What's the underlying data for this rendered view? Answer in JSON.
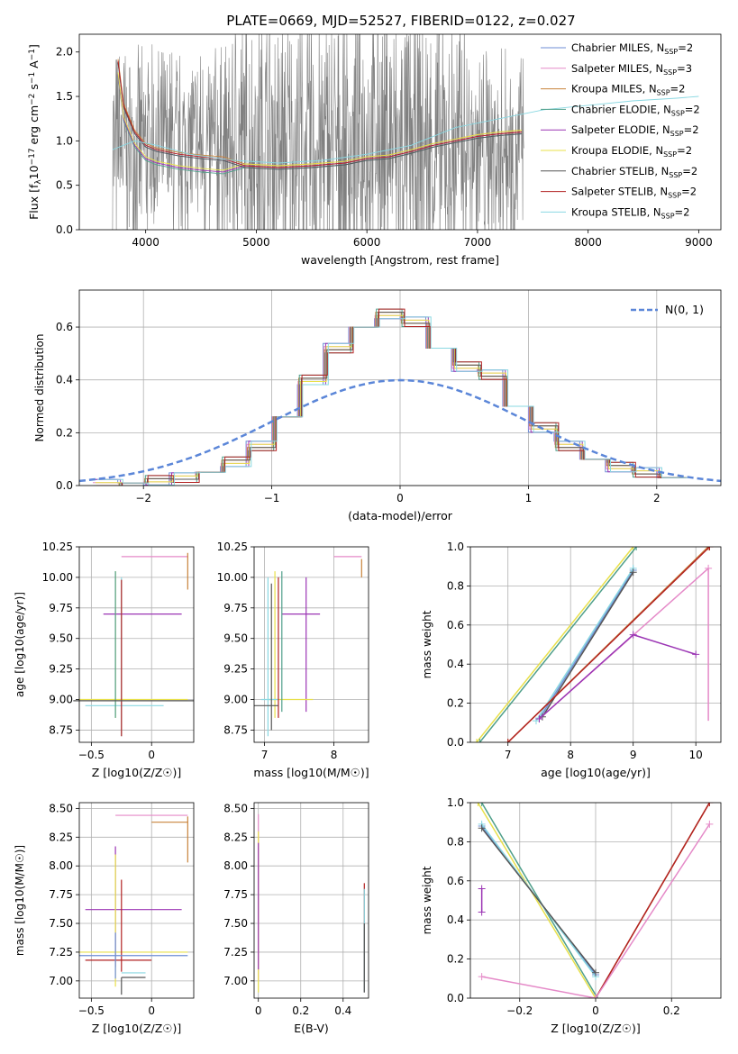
{
  "colors": {
    "Chabrier MILES": "#6e8ed6",
    "Salpeter MILES": "#e58ac8",
    "Kroupa MILES": "#c8823a",
    "Chabrier ELODIE": "#4f9f8a",
    "Salpeter ELODIE": "#9b35b4",
    "Kroupa ELODIE": "#e8e04a",
    "Chabrier STELIB": "#555555",
    "Salpeter STELIB": "#b22222",
    "Kroupa STELIB": "#8ad8e2",
    "data": "#808080",
    "gauss": "#5b86d8"
  },
  "chart_data": [
    {
      "id": "spectrum",
      "type": "line",
      "title": "PLATE=0669, MJD=52527, FIBERID=0122, z=0.027",
      "xlabel": "wavelength [Angstrom, rest frame]",
      "ylabel": "Flux [f_λ 10^-17 erg cm^-2 s^-1 A^-1]",
      "xlim": [
        3400,
        9200
      ],
      "ylim": [
        0,
        2.2
      ],
      "xticks": [
        4000,
        5000,
        6000,
        7000,
        8000,
        9000
      ],
      "yticks": [
        0.0,
        0.5,
        1.0,
        1.5,
        2.0
      ],
      "legend_position": "top-right",
      "legend": [
        {
          "label": "Chabrier MILES, N",
          "sub": "SSP",
          "tail": "=2"
        },
        {
          "label": "Salpeter MILES, N",
          "sub": "SSP",
          "tail": "=3"
        },
        {
          "label": "Kroupa MILES, N",
          "sub": "SSP",
          "tail": "=2"
        },
        {
          "label": "Chabrier ELODIE, N",
          "sub": "SSP",
          "tail": "=2"
        },
        {
          "label": "Salpeter ELODIE, N",
          "sub": "SSP",
          "tail": "=2"
        },
        {
          "label": "Kroupa ELODIE, N",
          "sub": "SSP",
          "tail": "=2"
        },
        {
          "label": "Chabrier STELIB, N",
          "sub": "SSP",
          "tail": "=2"
        },
        {
          "label": "Salpeter STELIB, N",
          "sub": "SSP",
          "tail": "=2"
        },
        {
          "label": "Kroupa STELIB, N",
          "sub": "SSP",
          "tail": "=2"
        }
      ],
      "model_continuum": {
        "x": [
          3750,
          3800,
          3900,
          4000,
          4100,
          4300,
          4500,
          4700,
          4900,
          5200,
          5500,
          5800,
          6000,
          6200,
          6400,
          6600,
          6800,
          7000,
          7200,
          7400
        ],
        "y": [
          1.9,
          1.4,
          1.1,
          0.95,
          0.9,
          0.85,
          0.82,
          0.8,
          0.72,
          0.7,
          0.72,
          0.75,
          0.8,
          0.82,
          0.88,
          0.95,
          1.0,
          1.05,
          1.08,
          1.1
        ]
      },
      "stelib_model": {
        "x": [
          3700,
          3900,
          4100,
          4400,
          4800,
          5200,
          5600,
          6000,
          6400,
          6800,
          7200,
          7600,
          8000,
          8400,
          8800,
          9000
        ],
        "y": [
          0.9,
          1.0,
          0.95,
          0.85,
          0.78,
          0.75,
          0.78,
          0.85,
          0.95,
          1.15,
          1.25,
          1.35,
          1.4,
          1.45,
          1.48,
          1.5
        ]
      }
    },
    {
      "id": "residuals",
      "type": "line",
      "xlabel": "(data-model)/error",
      "ylabel": "Normed distribution",
      "xlim": [
        -2.5,
        2.5
      ],
      "ylim": [
        0,
        0.74
      ],
      "xticks": [
        -2,
        -1,
        0,
        1,
        2
      ],
      "yticks": [
        0.0,
        0.2,
        0.4,
        0.6
      ],
      "legend": "N(0, 1)",
      "legend_position": "top-right",
      "hist_bins": [
        -2.3,
        -2.1,
        -1.9,
        -1.7,
        -1.5,
        -1.3,
        -1.1,
        -0.9,
        -0.7,
        -0.5,
        -0.3,
        -0.1,
        0.1,
        0.3,
        0.5,
        0.7,
        0.9,
        1.1,
        1.3,
        1.5,
        1.7,
        1.9,
        2.1,
        2.3
      ],
      "hist_values": [
        0.005,
        0.01,
        0.02,
        0.03,
        0.05,
        0.09,
        0.15,
        0.26,
        0.4,
        0.52,
        0.6,
        0.65,
        0.62,
        0.52,
        0.45,
        0.42,
        0.3,
        0.22,
        0.15,
        0.1,
        0.07,
        0.05,
        0.03
      ]
    },
    {
      "id": "age-vs-Z",
      "type": "scatter",
      "xlabel": "Z [log10(Z/Z☉)]",
      "ylabel": "age  [log10(age/yr)]",
      "xlim": [
        -0.6,
        0.35
      ],
      "ylim": [
        8.65,
        10.25
      ],
      "xticks": [
        -0.5,
        0.0
      ],
      "yticks": [
        8.75,
        9.0,
        9.25,
        9.5,
        9.75,
        10.0,
        10.25
      ]
    },
    {
      "id": "age-vs-mass",
      "type": "scatter",
      "xlabel": "mass [log10(M/M☉)]",
      "xlim": [
        6.85,
        8.5
      ],
      "ylim": [
        8.65,
        10.25
      ],
      "xticks": [
        7,
        8
      ],
      "yticks": [
        8.75,
        9.0,
        9.25,
        9.5,
        9.75,
        10.0,
        10.25
      ]
    },
    {
      "id": "weight-vs-age",
      "type": "line",
      "xlabel": "age  [log10(age/yr)]",
      "ylabel": "mass weight",
      "xlim": [
        6.4,
        10.4
      ],
      "ylim": [
        0,
        1.0
      ],
      "xticks": [
        7,
        8,
        9,
        10
      ],
      "yticks": [
        0.0,
        0.2,
        0.4,
        0.6,
        0.8,
        1.0
      ]
    },
    {
      "id": "mass-vs-Z",
      "type": "scatter",
      "xlabel": "Z [log10(Z/Z☉)]",
      "ylabel": "mass [log10(M/M☉)]",
      "xlim": [
        -0.6,
        0.35
      ],
      "ylim": [
        6.85,
        8.55
      ],
      "xticks": [
        -0.5,
        0.0
      ],
      "yticks": [
        7.0,
        7.25,
        7.5,
        7.75,
        8.0,
        8.25,
        8.5
      ]
    },
    {
      "id": "mass-vs-ebv",
      "type": "scatter",
      "xlabel": "E(B-V)",
      "xlim": [
        -0.02,
        0.52
      ],
      "ylim": [
        6.85,
        8.55
      ],
      "xticks": [
        0.0,
        0.2,
        0.4
      ],
      "yticks": [
        7.0,
        7.25,
        7.5,
        7.75,
        8.0,
        8.25,
        8.5
      ]
    },
    {
      "id": "weight-vs-Z",
      "type": "line",
      "xlabel": "Z [log10(Z/Z☉)]",
      "ylabel": "mass weight",
      "xlim": [
        -0.33,
        0.33
      ],
      "ylim": [
        0,
        1.0
      ],
      "xticks": [
        -0.2,
        0.0,
        0.2
      ],
      "yticks": [
        0.0,
        0.2,
        0.4,
        0.6,
        0.8,
        1.0
      ]
    }
  ]
}
